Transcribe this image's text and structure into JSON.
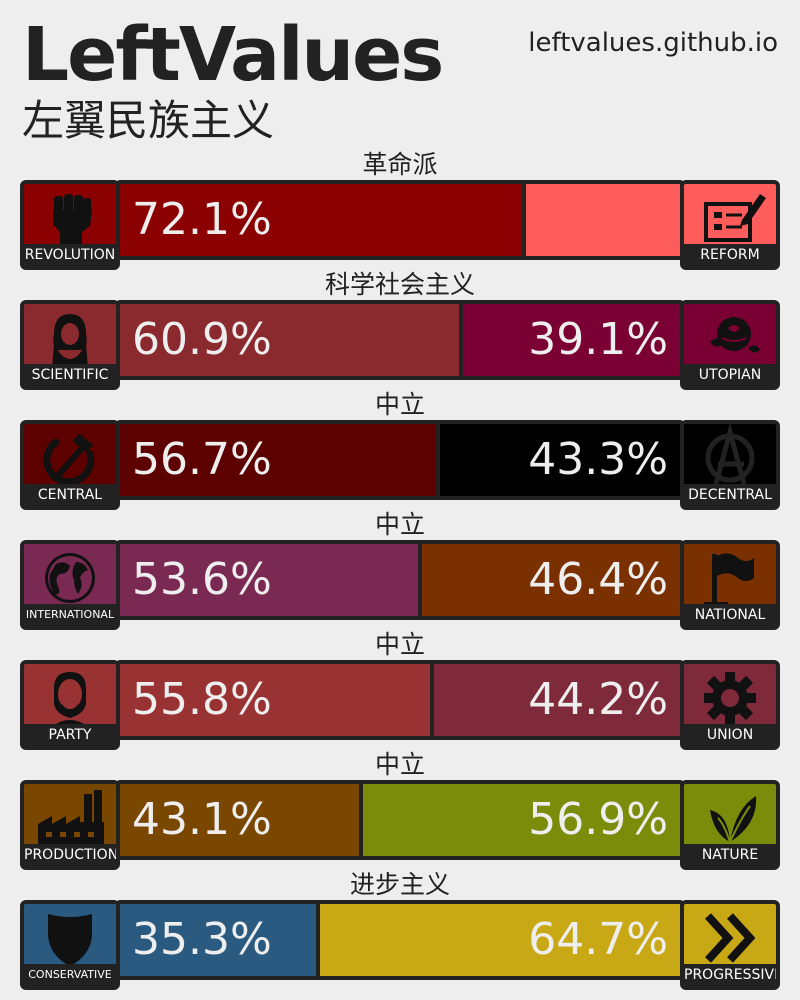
{
  "header": {
    "title": "LeftValues",
    "subtitle": "左翼民族主义",
    "website": "leftvalues.github.io"
  },
  "axes": [
    {
      "label": "革命派",
      "left": {
        "name": "REVOLUTION",
        "icon": "raised-fist-icon",
        "pct": "72.1%",
        "value": 72.1,
        "color": "#8b0000"
      },
      "right": {
        "name": "REFORM",
        "icon": "ballot-box-icon",
        "pct": "",
        "value": 27.9,
        "color": "#ff5c5c"
      }
    },
    {
      "label": "科学社会主义",
      "left": {
        "name": "SCIENTIFIC",
        "icon": "marx-portrait-icon",
        "pct": "60.9%",
        "value": 60.9,
        "color": "#8b2a2e"
      },
      "right": {
        "name": "UTOPIAN",
        "icon": "rose-icon",
        "pct": "39.1%",
        "value": 39.1,
        "color": "#7a0033"
      }
    },
    {
      "label": "中立",
      "left": {
        "name": "CENTRAL",
        "icon": "hammer-sickle-icon",
        "pct": "56.7%",
        "value": 56.7,
        "color": "#5c0000"
      },
      "right": {
        "name": "DECENTRAL",
        "icon": "anarchy-icon",
        "pct": "43.3%",
        "value": 43.3,
        "color": "#000000"
      }
    },
    {
      "label": "中立",
      "left": {
        "name": "INTERNATIONAL",
        "icon": "globe-icon",
        "pct": "53.6%",
        "value": 53.6,
        "color": "#7a2a52"
      },
      "right": {
        "name": "NATIONAL",
        "icon": "flag-icon",
        "pct": "46.4%",
        "value": 46.4,
        "color": "#7a3000"
      }
    },
    {
      "label": "中立",
      "left": {
        "name": "PARTY",
        "icon": "lenin-portrait-icon",
        "pct": "55.8%",
        "value": 55.8,
        "color": "#993333"
      },
      "right": {
        "name": "UNION",
        "icon": "gear-icon",
        "pct": "44.2%",
        "value": 44.2,
        "color": "#7f2a3a"
      }
    },
    {
      "label": "中立",
      "left": {
        "name": "PRODUCTION",
        "icon": "factory-icon",
        "pct": "43.1%",
        "value": 43.1,
        "color": "#7a4700"
      },
      "right": {
        "name": "NATURE",
        "icon": "leaves-icon",
        "pct": "56.9%",
        "value": 56.9,
        "color": "#7a8c0a"
      }
    },
    {
      "label": "进步主义",
      "left": {
        "name": "CONSERVATIVE",
        "icon": "shield-icon",
        "pct": "35.3%",
        "value": 35.3,
        "color": "#2a5a80"
      },
      "right": {
        "name": "PROGRESSIVE",
        "icon": "double-chevron-right-icon",
        "pct": "64.7%",
        "value": 64.7,
        "color": "#c9a816"
      }
    }
  ]
}
